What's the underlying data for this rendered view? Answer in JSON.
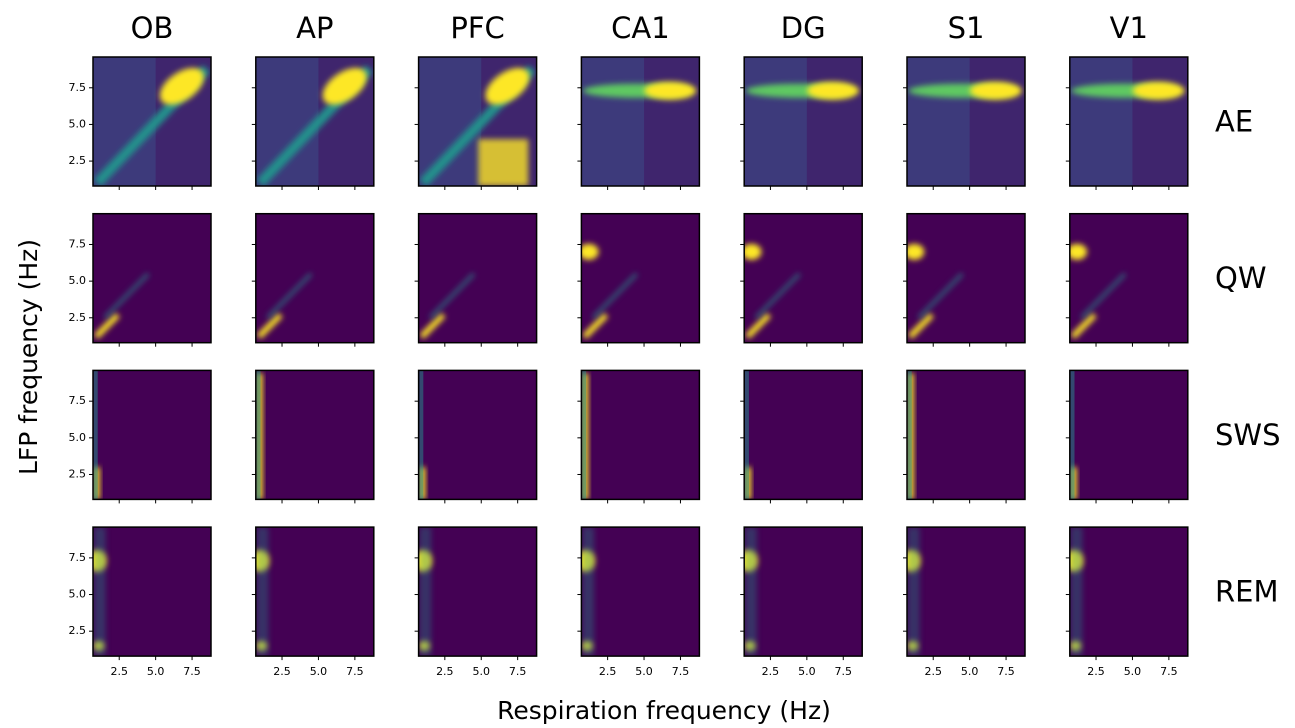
{
  "chart_data": {
    "type": "heatmap-grid",
    "columns": [
      "OB",
      "AP",
      "PFC",
      "CA1",
      "DG",
      "S1",
      "V1"
    ],
    "rows": [
      "AE",
      "QW",
      "SWS",
      "REM"
    ],
    "x_label": "Respiration frequency (Hz)",
    "y_label": "LFP frequency (Hz)",
    "xlim": [
      0.7,
      8.8
    ],
    "ylim": [
      0.8,
      9.6
    ],
    "xticks": [
      2.5,
      {
        "value": 5,
        "label": "5.0"
      },
      7.5
    ],
    "yticks": [
      2.5,
      {
        "value": 5,
        "label": "5.0"
      },
      7.5
    ],
    "colormap": [
      "#440154",
      "#3b528b",
      "#21918c",
      "#5ec962",
      "#fde725"
    ],
    "grid": false
  }
}
